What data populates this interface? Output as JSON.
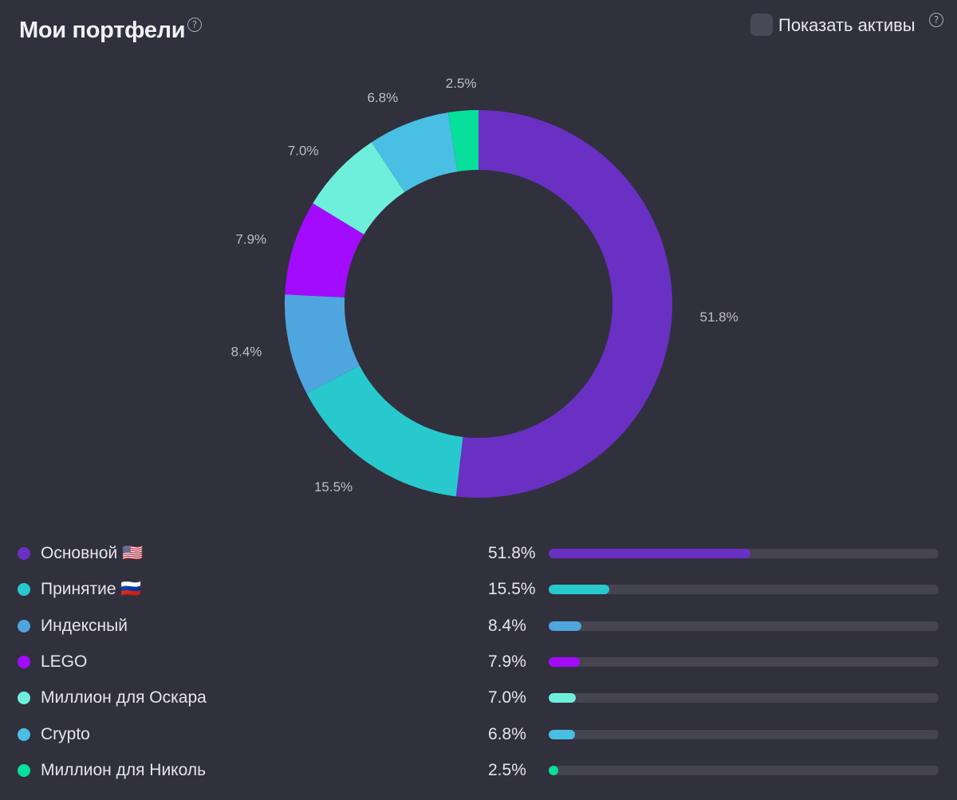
{
  "header": {
    "title": "Мои портфели",
    "title_help": "?",
    "toggle_label": "Показать активы",
    "toggle_help": "?",
    "toggle_checked": false
  },
  "chart_data": {
    "type": "pie",
    "donut": true,
    "legend_placement": "bottom",
    "series": [
      {
        "name": "Основной 🇺🇸",
        "value": 51.8,
        "label": "51.8%",
        "color": "#6930c3"
      },
      {
        "name": "Принятие 🇷🇺",
        "value": 15.5,
        "label": "15.5%",
        "color": "#28c9cd"
      },
      {
        "name": "Индексный",
        "value": 8.4,
        "label": "8.4%",
        "color": "#4fa5de"
      },
      {
        "name": "LEGO",
        "value": 7.9,
        "label": "7.9%",
        "color": "#a20bff"
      },
      {
        "name": "Миллион для Оскара",
        "value": 7.0,
        "label": "7.0%",
        "color": "#6eefdc"
      },
      {
        "name": "Crypto",
        "value": 6.8,
        "label": "6.8%",
        "color": "#48bfe3"
      },
      {
        "name": "Миллион для Николь",
        "value": 2.5,
        "label": "2.5%",
        "color": "#06e09a"
      }
    ]
  }
}
